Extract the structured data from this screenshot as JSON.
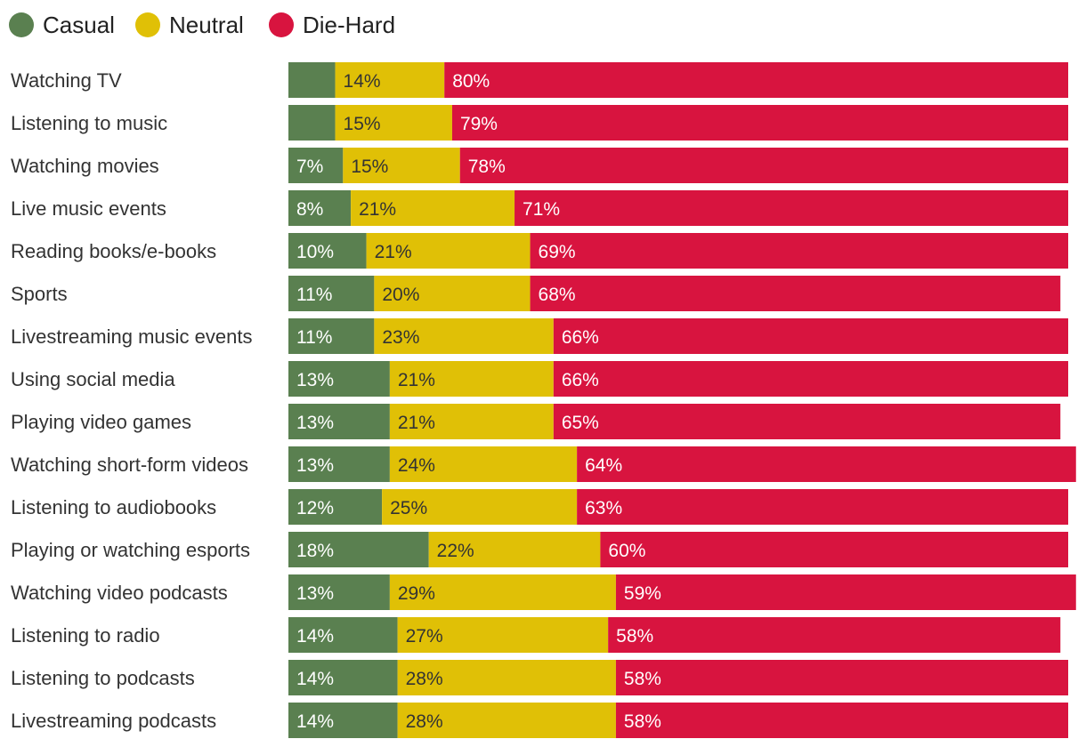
{
  "chart_data": {
    "type": "bar",
    "orientation": "horizontal",
    "stacked": true,
    "title": "",
    "xlabel": "",
    "ylabel": "",
    "xlim": [
      0,
      100
    ],
    "legend_position": "top-left",
    "categories": [
      "Watching TV",
      "Listening to music",
      "Watching movies",
      "Live music events",
      "Reading books/e-books",
      "Sports",
      "Livestreaming music events",
      "Using social media",
      "Playing video games",
      "Watching short-form videos",
      "Listening to audiobooks",
      "Playing or watching esports",
      "Watching video podcasts",
      "Listening to radio",
      "Listening to podcasts",
      "Livestreaming podcasts"
    ],
    "series": [
      {
        "name": "Casual",
        "color": "#5a8050",
        "label_color": "#ffffff",
        "values": [
          6,
          6,
          7,
          8,
          10,
          11,
          11,
          13,
          13,
          13,
          12,
          18,
          13,
          14,
          14,
          14
        ],
        "labels": [
          "",
          "",
          "7%",
          "8%",
          "10%",
          "11%",
          "11%",
          "13%",
          "13%",
          "13%",
          "12%",
          "18%",
          "13%",
          "14%",
          "14%",
          "14%"
        ]
      },
      {
        "name": "Neutral",
        "color": "#e0c006",
        "label_color": "#333333",
        "values": [
          14,
          15,
          15,
          21,
          21,
          20,
          23,
          21,
          21,
          24,
          25,
          22,
          29,
          27,
          28,
          28
        ],
        "labels": [
          "14%",
          "15%",
          "15%",
          "21%",
          "21%",
          "20%",
          "23%",
          "21%",
          "21%",
          "24%",
          "25%",
          "22%",
          "29%",
          "27%",
          "28%",
          "28%"
        ]
      },
      {
        "name": "Die-Hard",
        "color": "#d8143f",
        "label_color": "#ffffff",
        "values": [
          80,
          79,
          78,
          71,
          69,
          68,
          66,
          66,
          65,
          64,
          63,
          60,
          59,
          58,
          58,
          58
        ],
        "labels": [
          "80%",
          "79%",
          "78%",
          "71%",
          "69%",
          "68%",
          "66%",
          "66%",
          "65%",
          "64%",
          "63%",
          "60%",
          "59%",
          "58%",
          "58%",
          "58%"
        ]
      }
    ]
  }
}
